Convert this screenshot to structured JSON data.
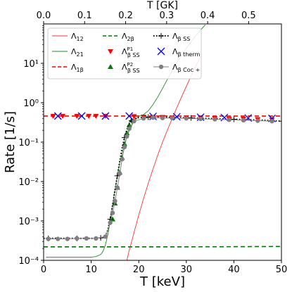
{
  "chart_data": {
    "type": "line",
    "xlabel": "T [keV]",
    "ylabel": "Rate [1/s]",
    "top_xlabel": "T [GK]",
    "xlim": [
      0,
      50
    ],
    "ylim": [
      0.0001,
      100
    ],
    "top_xlim": [
      0,
      0.58
    ],
    "yscale": "log",
    "x_ticks": [
      "0",
      "10",
      "20",
      "30",
      "40",
      "50"
    ],
    "x_tick_values": [
      0,
      10,
      20,
      30,
      40,
      50
    ],
    "top_ticks": [
      "0.0",
      "0.1",
      "0.2",
      "0.3",
      "0.4",
      "0.5"
    ],
    "top_tick_values": [
      0.0,
      0.1,
      0.2,
      0.3,
      0.4,
      0.5
    ],
    "y_ticks": [
      "10⁻⁴",
      "10⁻³",
      "10⁻²",
      "10⁻¹",
      "10⁰",
      "10¹"
    ],
    "y_tick_values": [
      0.0001,
      0.001,
      0.01,
      0.1,
      1,
      10
    ],
    "grid": false,
    "legend_position": "top",
    "series": [
      {
        "name": "Λ12",
        "color": "#ff3333",
        "style": "solid",
        "x": [
          17.5,
          18,
          19,
          20,
          21,
          22,
          23,
          24,
          25,
          26,
          27,
          28,
          29,
          30,
          31,
          32,
          33
        ],
        "y": [
          0.0001,
          0.00018,
          0.0005,
          0.0014,
          0.0037,
          0.009,
          0.021,
          0.047,
          0.1,
          0.2,
          0.39,
          0.75,
          1.4,
          2.6,
          4.8,
          8.5,
          15
        ]
      },
      {
        "name": "Λ21",
        "color": "#228b22",
        "style": "solid",
        "x": [
          0.5,
          10,
          11,
          12,
          12.5,
          13,
          13.5,
          14,
          14.5,
          15,
          15.5,
          16,
          17,
          18,
          19,
          20,
          21,
          22,
          23,
          24,
          25,
          26,
          27,
          28,
          29,
          30,
          31,
          32,
          33,
          34
        ],
        "y": [
          0.00012,
          0.00012,
          0.000125,
          0.00014,
          0.00017,
          0.00025,
          0.00045,
          0.001,
          0.0025,
          0.006,
          0.014,
          0.03,
          0.09,
          0.2,
          0.34,
          0.45,
          0.5,
          0.62,
          0.9,
          1.4,
          2.3,
          3.9,
          6.5,
          10.5,
          16,
          24,
          35,
          50,
          70,
          95
        ]
      },
      {
        "name": "Λ1β",
        "color": "#ff0000",
        "style": "dashed",
        "x": [
          0,
          10,
          20,
          30,
          40,
          50
        ],
        "y": [
          0.46,
          0.46,
          0.46,
          0.46,
          0.46,
          0.46
        ]
      },
      {
        "name": "Λ2β",
        "color": "#007700",
        "style": "dashed",
        "x": [
          0,
          10,
          20,
          30,
          40,
          50
        ],
        "y": [
          0.00022,
          0.00022,
          0.00022,
          0.00022,
          0.000222,
          0.000225
        ]
      },
      {
        "name": "ΛβSS P1",
        "color": "#ff0000",
        "style": "marker-triangle-down",
        "x": [
          2,
          4,
          7,
          9.5,
          11,
          13,
          19,
          21,
          23,
          25,
          27,
          30,
          33,
          36,
          39,
          42,
          45,
          48
        ],
        "y": [
          0.46,
          0.46,
          0.46,
          0.46,
          0.46,
          0.46,
          0.45,
          0.44,
          0.43,
          0.43,
          0.42,
          0.42,
          0.41,
          0.4,
          0.39,
          0.39,
          0.38,
          0.37
        ]
      },
      {
        "name": "ΛβSS P2",
        "color": "#008000",
        "style": "marker-triangle-up",
        "x": [
          14.5,
          15,
          15.5,
          16,
          16.5,
          17,
          17.5,
          18,
          18.5
        ],
        "y": [
          0.0011,
          0.0028,
          0.007,
          0.017,
          0.04,
          0.09,
          0.17,
          0.27,
          0.36
        ]
      },
      {
        "name": "ΛβSS",
        "color": "#000000",
        "style": "dotted-plus",
        "x": [
          0,
          1,
          3,
          5,
          7,
          9,
          11,
          12,
          13,
          13.5,
          14,
          14.5,
          15,
          15.5,
          16,
          16.5,
          17,
          17.5,
          18,
          18.5,
          19,
          20,
          22,
          25,
          28,
          31,
          34,
          37,
          40,
          43,
          46,
          50
        ],
        "y": [
          0.00036,
          0.00036,
          0.00036,
          0.00036,
          0.00036,
          0.00036,
          0.00036,
          0.00037,
          0.0004,
          0.0006,
          0.0011,
          0.0025,
          0.006,
          0.014,
          0.033,
          0.07,
          0.13,
          0.21,
          0.29,
          0.35,
          0.39,
          0.42,
          0.43,
          0.43,
          0.42,
          0.41,
          0.4,
          0.39,
          0.38,
          0.37,
          0.36,
          0.34
        ]
      },
      {
        "name": "Λβ therm",
        "color": "#0000ff",
        "style": "marker-x",
        "x": [
          3,
          8,
          13,
          18,
          23,
          28,
          33,
          38,
          43,
          48
        ],
        "y": [
          0.46,
          0.46,
          0.46,
          0.46,
          0.45,
          0.44,
          0.43,
          0.42,
          0.41,
          0.4
        ]
      },
      {
        "name": "Λβ Coc+",
        "color": "#808080",
        "style": "marker-circle-line",
        "x": [
          1,
          3,
          5,
          7,
          9,
          11,
          13,
          14,
          14.5,
          15,
          15.5,
          16,
          16.5,
          17,
          17.5,
          18,
          19,
          21,
          23,
          25,
          27,
          30,
          33,
          36,
          39,
          42,
          45,
          48
        ],
        "y": [
          0.00035,
          0.00035,
          0.00035,
          0.00036,
          0.00036,
          0.00036,
          0.0004,
          0.0009,
          0.0016,
          0.0032,
          0.007,
          0.016,
          0.037,
          0.075,
          0.14,
          0.22,
          0.34,
          0.4,
          0.42,
          0.41,
          0.41,
          0.4,
          0.39,
          0.38,
          0.37,
          0.36,
          0.35,
          0.34
        ]
      }
    ],
    "legend": [
      {
        "label": "Λ",
        "sub": "12",
        "sup": ""
      },
      {
        "label": "Λ",
        "sub": "21",
        "sup": ""
      },
      {
        "label": "Λ",
        "sub": "1β",
        "sup": ""
      },
      {
        "label": "Λ",
        "sub": "2β",
        "sup": ""
      },
      {
        "label": "Λ",
        "sub": "β SS",
        "sup": "P1"
      },
      {
        "label": "Λ",
        "sub": "β SS",
        "sup": "P2"
      },
      {
        "label": "Λ",
        "sub": "β SS",
        "sup": ""
      },
      {
        "label": "Λ",
        "sub": "β therm",
        "sup": ""
      },
      {
        "label": "Λ",
        "sub": "β Coc +",
        "sup": ""
      }
    ]
  }
}
